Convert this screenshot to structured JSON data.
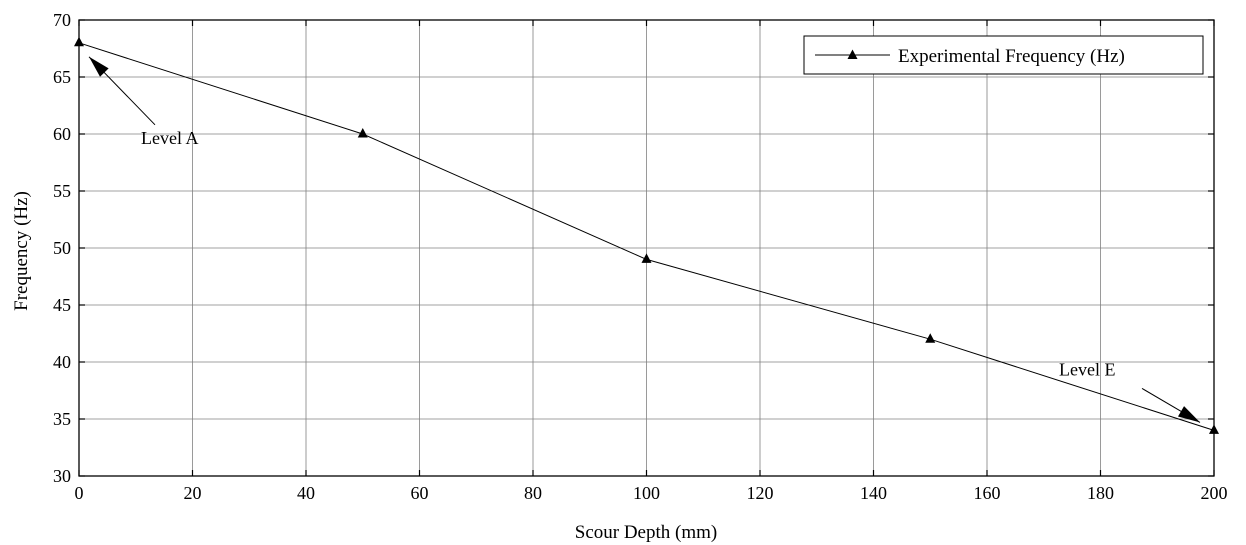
{
  "chart_data": {
    "type": "line",
    "title": "",
    "xlabel": "Scour Depth (mm)",
    "ylabel": "Frequency (Hz)",
    "xlim": [
      0,
      200
    ],
    "ylim": [
      30,
      70
    ],
    "xticks": [
      0,
      20,
      40,
      60,
      80,
      100,
      120,
      140,
      160,
      180,
      200
    ],
    "yticks": [
      30,
      35,
      40,
      45,
      50,
      55,
      60,
      65,
      70
    ],
    "grid": true,
    "legend_position": "top-right",
    "series": [
      {
        "name": "Experimental Frequency (Hz)",
        "marker": "triangle",
        "color": "#000000",
        "x": [
          0,
          50,
          100,
          150,
          200
        ],
        "y": [
          68,
          60,
          49,
          42,
          34
        ]
      }
    ],
    "annotations": [
      {
        "text": "Level A",
        "point": [
          0,
          68
        ]
      },
      {
        "text": "Level E",
        "point": [
          200,
          34
        ]
      }
    ]
  }
}
